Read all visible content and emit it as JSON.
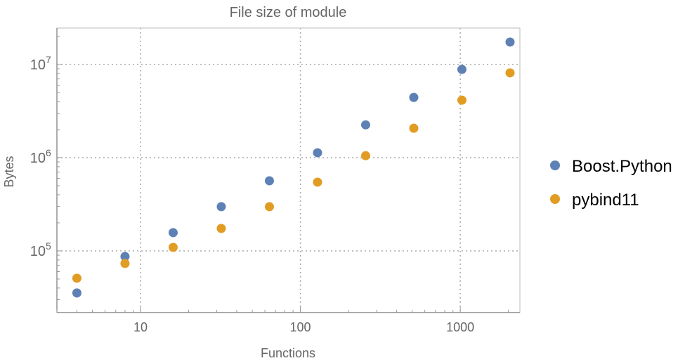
{
  "chart_data": {
    "type": "scatter",
    "title": "File size of module",
    "xlabel": "Functions",
    "ylabel": "Bytes",
    "xscale": "log",
    "yscale": "log",
    "xlim": [
      3,
      2360
    ],
    "ylim": [
      21800,
      24600000
    ],
    "x_ticks": [
      {
        "value": 10,
        "label": "10"
      },
      {
        "value": 100,
        "label": "100"
      },
      {
        "value": 1000,
        "label": "1000"
      }
    ],
    "y_ticks": [
      {
        "value": 100000,
        "base": "10",
        "exp": "5"
      },
      {
        "value": 1000000,
        "base": "10",
        "exp": "6"
      },
      {
        "value": 10000000,
        "base": "10",
        "exp": "7"
      }
    ],
    "grid": "dotted, at major ticks",
    "legend_position": "right",
    "series": [
      {
        "name": "Boost.Python",
        "color": "#5E81B5",
        "x": [
          4,
          8,
          16,
          32,
          64,
          128,
          256,
          512,
          1024,
          2048
        ],
        "y": [
          35400,
          87000,
          157000,
          298000,
          565000,
          1130000,
          2250000,
          4430000,
          8850000,
          17400000
        ]
      },
      {
        "name": "pybind11",
        "color": "#E19C24",
        "x": [
          4,
          8,
          16,
          32,
          64,
          128,
          256,
          512,
          1024,
          2048
        ],
        "y": [
          50900,
          73200,
          109000,
          174000,
          298000,
          546000,
          1050000,
          2070000,
          4140000,
          8130000
        ]
      }
    ]
  }
}
